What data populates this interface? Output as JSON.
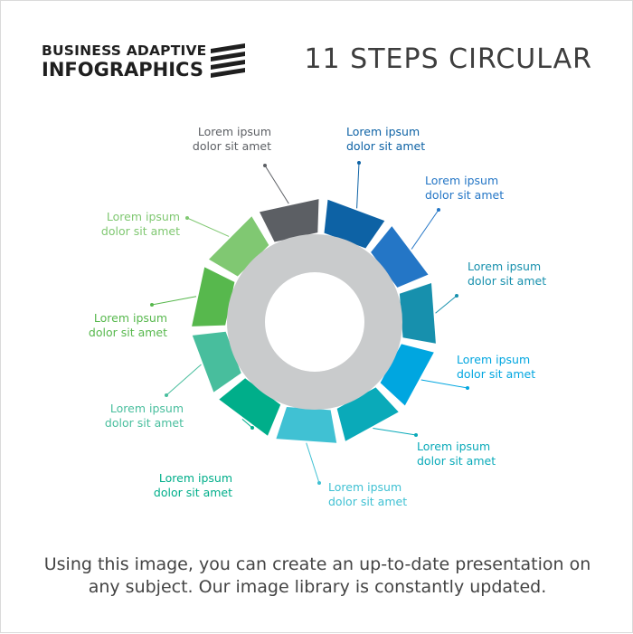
{
  "brand": {
    "line1": "BUSINESS ADAPTIVE",
    "line2": "INFOGRAPHICS",
    "mark_icon": "diagonal-stripes-logo-icon"
  },
  "title": "11 STEPS CIRCULAR",
  "steps": [
    {
      "line1": "Lorem ipsum",
      "line2": "dolor sit amet",
      "color": "#0d62a5"
    },
    {
      "line1": "Lorem ipsum",
      "line2": "dolor sit amet",
      "color": "#2476c6"
    },
    {
      "line1": "Lorem ipsum",
      "line2": "dolor sit amet",
      "color": "#1790ad"
    },
    {
      "line1": "Lorem ipsum",
      "line2": "dolor sit amet",
      "color": "#00a6e0"
    },
    {
      "line1": "Lorem ipsum",
      "line2": "dolor sit amet",
      "color": "#0aaab9"
    },
    {
      "line1": "Lorem ipsum",
      "line2": "dolor sit amet",
      "color": "#40c1d3"
    },
    {
      "line1": "Lorem ipsum",
      "line2": "dolor sit amet",
      "color": "#00ae8a"
    },
    {
      "line1": "Lorem ipsum",
      "line2": "dolor sit amet",
      "color": "#48be9d"
    },
    {
      "line1": "Lorem ipsum",
      "line2": "dolor sit amet",
      "color": "#57b84d"
    },
    {
      "line1": "Lorem ipsum",
      "line2": "dolor sit amet",
      "color": "#80c872"
    },
    {
      "line1": "Lorem ipsum",
      "line2": "dolor sit amet",
      "color": "#5c5f64"
    }
  ],
  "ring_color": "#c9cbcc",
  "caption": {
    "line1": "Using this image, you can create an up-to-date presentation on",
    "line2": "any subject. Our image library is constantly updated."
  }
}
